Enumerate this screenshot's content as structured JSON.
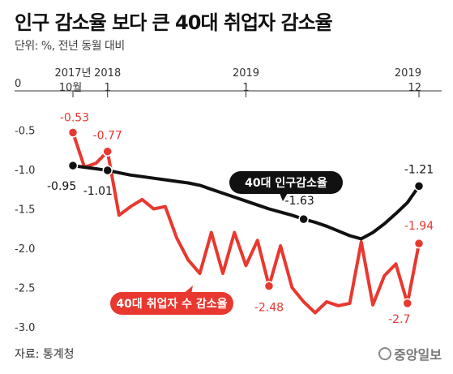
{
  "header": {
    "title": "인구 감소율 보다 큰 40대 취업자 감소율",
    "subtitle": "단위: %, 전년 동월 대비"
  },
  "footer": {
    "source": "자료: 통계청",
    "brand": "중앙일보"
  },
  "colors": {
    "employed": "#e8382f",
    "population": "#111111",
    "zero_line": "#333333",
    "background": "#ffffff"
  },
  "chart_data": {
    "type": "line",
    "ylim": [
      -3.0,
      0
    ],
    "yticks": [
      "0",
      "-0.5",
      "-1.0",
      "-1.5",
      "-2.0",
      "-2.5",
      "-3.0"
    ],
    "grid": false,
    "x_top_labels": [
      {
        "year": "2017년",
        "month": "10월"
      },
      {
        "year": "2018",
        "month": "1"
      },
      {
        "year": "2019",
        "month": "1"
      },
      {
        "year": "2019",
        "month": "12"
      }
    ],
    "series": [
      {
        "name": "40대 취업자 수 감소율",
        "key": "employed",
        "values": [
          -0.53,
          -0.97,
          -0.92,
          -0.77,
          -1.58,
          -1.47,
          -1.38,
          -1.5,
          -1.47,
          -1.87,
          -2.15,
          -2.32,
          -1.8,
          -2.32,
          -1.8,
          -2.22,
          -1.9,
          -2.48,
          -1.97,
          -2.5,
          -2.68,
          -2.82,
          -2.68,
          -2.73,
          -2.7,
          -1.92,
          -2.72,
          -2.35,
          -2.2,
          -2.7,
          -1.94
        ],
        "labels": [
          {
            "index": 0,
            "text": "-0.53"
          },
          {
            "index": 3,
            "text": "-0.77"
          },
          {
            "index": 17,
            "text": "-2.48"
          },
          {
            "index": 29,
            "text": "-2.7"
          },
          {
            "index": 30,
            "text": "-1.94"
          }
        ]
      },
      {
        "name": "40대 인구감소율",
        "key": "population",
        "values": [
          -0.95,
          -0.97,
          -0.99,
          -1.01,
          -1.04,
          -1.07,
          -1.09,
          -1.11,
          -1.13,
          -1.15,
          -1.17,
          -1.2,
          -1.25,
          -1.3,
          -1.35,
          -1.4,
          -1.45,
          -1.5,
          -1.54,
          -1.58,
          -1.63,
          -1.67,
          -1.72,
          -1.78,
          -1.84,
          -1.88,
          -1.8,
          -1.69,
          -1.56,
          -1.42,
          -1.21
        ],
        "labels": [
          {
            "index": 0,
            "text": "-0.95"
          },
          {
            "index": 3,
            "text": "-1.01"
          },
          {
            "index": 20,
            "text": "-1.63"
          },
          {
            "index": 30,
            "text": "-1.21"
          }
        ]
      }
    ]
  }
}
